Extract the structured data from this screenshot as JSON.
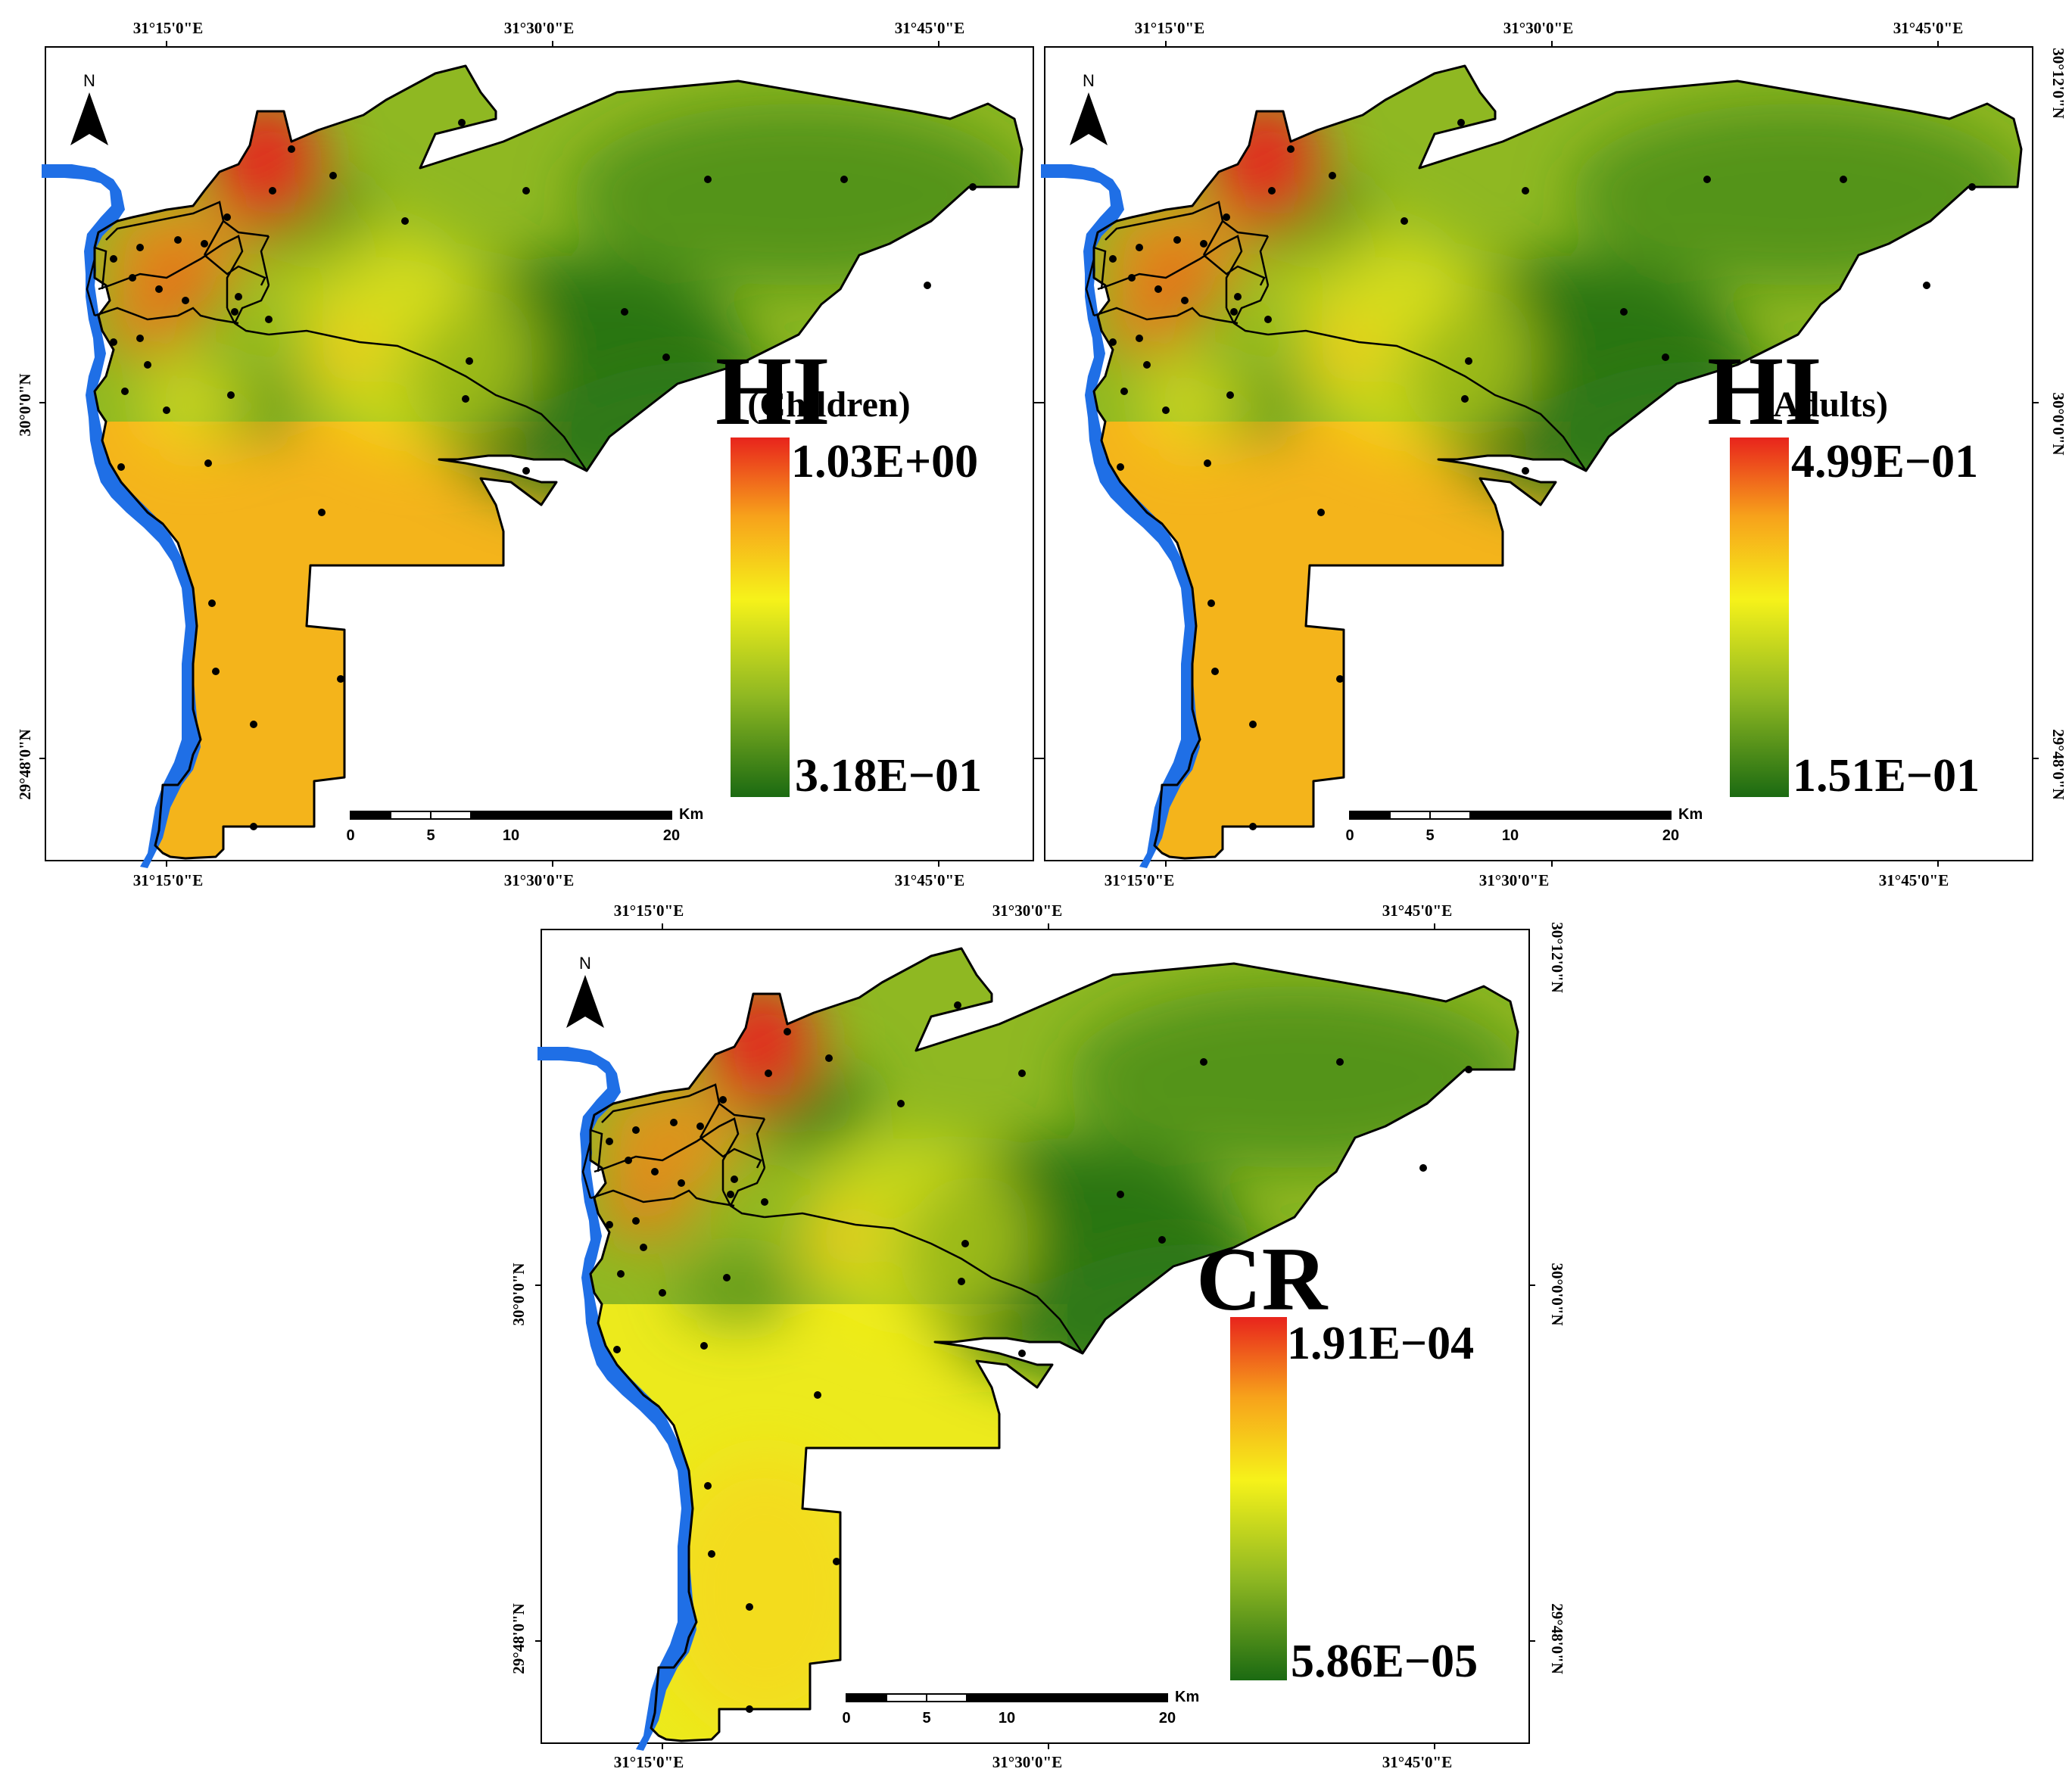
{
  "maps": [
    {
      "id": "hi-children",
      "title_main": "HI",
      "title_sub": "(Children)",
      "legend_max": "1.03E+00",
      "legend_min": "3.18E−01",
      "north_label": "N",
      "scale_unit": "Km",
      "scale_ticks": [
        "0",
        "5",
        "10",
        "20"
      ],
      "top_lon_labels": [
        "31°15'0\"E",
        "31°30'0\"E",
        "31°45'0\"E"
      ],
      "bottom_lon_labels": [
        "31°15'0\"E",
        "31°30'0\"E",
        "31°45'0\"E"
      ],
      "left_lat_labels": [
        "30°0'0\"N",
        "29°48'0\"N"
      ],
      "right_lat_labels": []
    },
    {
      "id": "hi-adults",
      "title_main": "HI",
      "title_sub": "(Adults)",
      "legend_max": "4.99E−01",
      "legend_min": "1.51E−01",
      "north_label": "N",
      "scale_unit": "Km",
      "scale_ticks": [
        "0",
        "5",
        "10",
        "20"
      ],
      "top_lon_labels": [
        "31°15'0\"E",
        "31°30'0\"E",
        "31°45'0\"E"
      ],
      "bottom_lon_labels": [
        "31°15'0\"E",
        "31°30'0\"E",
        "31°45'0\"E"
      ],
      "left_lat_labels": [],
      "right_lat_labels": [
        "30°12'0\"N",
        "30°0'0\"N",
        "29°48'0\"N"
      ]
    },
    {
      "id": "cr",
      "title_main": "CR",
      "title_sub": "",
      "legend_max": "1.91E−04",
      "legend_min": "5.86E−05",
      "north_label": "N",
      "scale_unit": "Km",
      "scale_ticks": [
        "0",
        "5",
        "10",
        "20"
      ],
      "top_lon_labels": [
        "31°15'0\"E",
        "31°30'0\"E",
        "31°45'0\"E"
      ],
      "bottom_lon_labels": [
        "31°15'0\"E",
        "31°30'0\"E",
        "31°45'0\"E"
      ],
      "left_lat_labels": [
        "30°0'0\"N",
        "29°48'0\"N"
      ],
      "right_lat_labels": [
        "30°12'0\"N",
        "30°0'0\"N",
        "29°48'0\"N"
      ]
    }
  ],
  "colors": {
    "high": "#e8241c",
    "mid_high": "#f7a21b",
    "mid": "#f6f21a",
    "mid_low": "#8fb822",
    "low": "#1b6a12",
    "river": "#1f6fe6"
  }
}
